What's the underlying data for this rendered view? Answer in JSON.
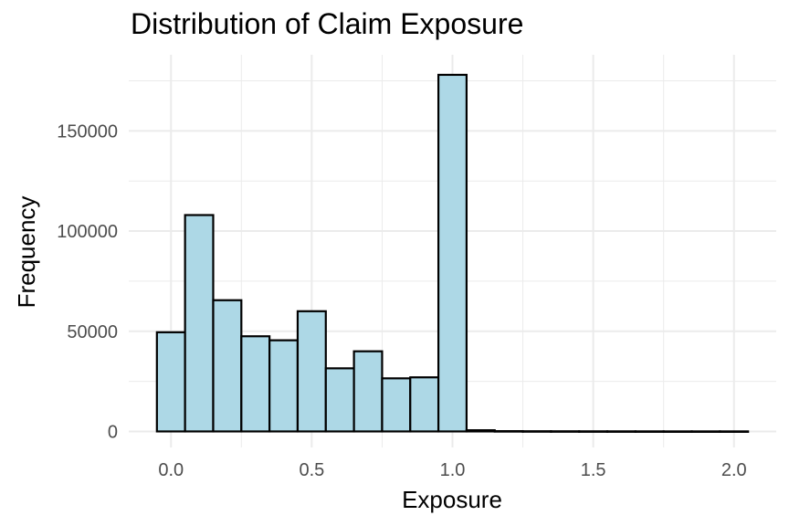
{
  "chart_data": {
    "type": "bar",
    "title": "Distribution of Claim Exposure",
    "xlabel": "Exposure",
    "ylabel": "Frequency",
    "bin_width": 0.1,
    "x_bin_centers": [
      0.0,
      0.1,
      0.2,
      0.3,
      0.4,
      0.5,
      0.6,
      0.7,
      0.8,
      0.9,
      1.0,
      1.1,
      1.2,
      1.3,
      1.4,
      1.5,
      1.6,
      1.7,
      1.8,
      1.9,
      2.0
    ],
    "values": [
      49500,
      108000,
      65500,
      47500,
      45500,
      60000,
      31500,
      40000,
      26500,
      27000,
      178000,
      600,
      150,
      100,
      80,
      60,
      50,
      40,
      30,
      30,
      30
    ],
    "xlim": [
      -0.15,
      2.15
    ],
    "ylim": [
      -8000,
      188000
    ],
    "x_ticks": [
      0.0,
      0.5,
      1.0,
      1.5,
      2.0
    ],
    "x_tick_labels": [
      "0.0",
      "0.5",
      "1.0",
      "1.5",
      "2.0"
    ],
    "y_ticks": [
      0,
      50000,
      100000,
      150000
    ],
    "y_tick_labels": [
      "0",
      "50000",
      "100000",
      "150000"
    ],
    "grid": true,
    "bar_fill": "#add8e6",
    "bar_stroke": "#000000",
    "grid_color": "#ebebeb"
  }
}
